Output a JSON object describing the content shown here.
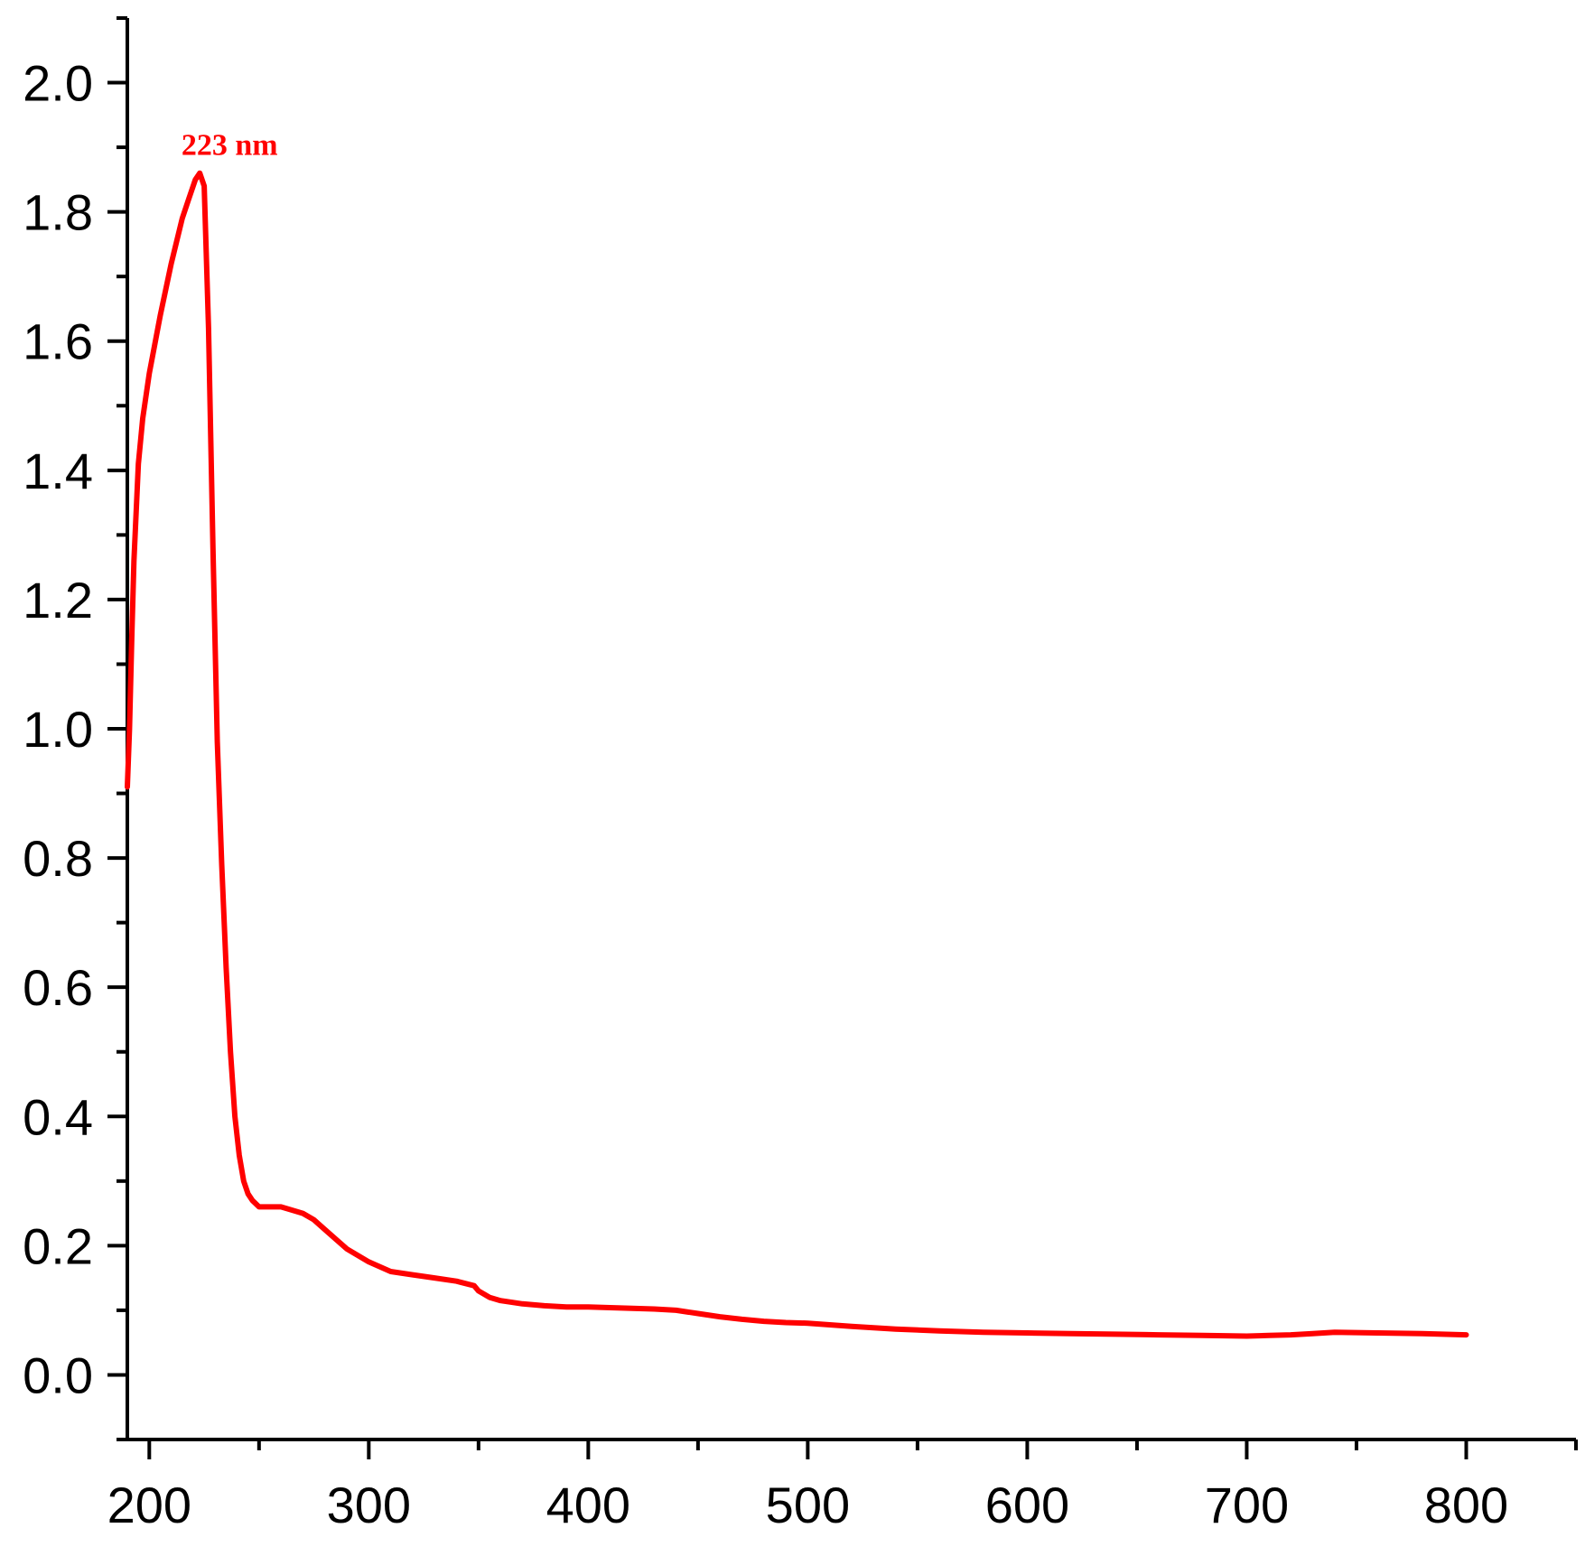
{
  "chart_data": {
    "type": "line",
    "title": "",
    "xlabel": "",
    "ylabel": "",
    "xlim": [
      190,
      850
    ],
    "ylim": [
      -0.1,
      2.1
    ],
    "x_ticks": [
      200,
      300,
      400,
      500,
      600,
      700,
      800
    ],
    "x_minor_ticks": [
      250,
      350,
      450,
      550,
      650,
      750,
      850
    ],
    "y_ticks": [
      0.0,
      0.2,
      0.4,
      0.6,
      0.8,
      1.0,
      1.2,
      1.4,
      1.6,
      1.8,
      2.0
    ],
    "y_minor_ticks": [
      -0.1,
      0.1,
      0.3,
      0.5,
      0.7,
      0.9,
      1.1,
      1.3,
      1.5,
      1.7,
      1.9,
      2.1
    ],
    "x_tick_labels": [
      "200",
      "300",
      "400",
      "500",
      "600",
      "700",
      "800"
    ],
    "y_tick_labels": [
      "0.0",
      "0.2",
      "0.4",
      "0.6",
      "0.8",
      "1.0",
      "1.2",
      "1.4",
      "1.6",
      "1.8",
      "2.0"
    ],
    "grid": false,
    "series": [
      {
        "color": "#ff0000",
        "x": [
          190,
          191,
          192,
          193,
          195,
          197,
          200,
          205,
          210,
          215,
          218,
          221,
          223,
          225,
          227,
          229,
          231,
          233,
          235,
          237,
          239,
          241,
          243,
          245,
          247,
          250,
          253,
          256,
          260,
          265,
          270,
          275,
          280,
          285,
          290,
          300,
          310,
          320,
          330,
          340,
          348,
          350,
          355,
          360,
          370,
          380,
          390,
          400,
          410,
          420,
          430,
          440,
          450,
          460,
          470,
          480,
          490,
          500,
          520,
          540,
          560,
          580,
          600,
          620,
          640,
          660,
          680,
          700,
          710,
          720,
          730,
          740,
          760,
          780,
          800
        ],
        "y": [
          0.91,
          1.0,
          1.14,
          1.26,
          1.41,
          1.48,
          1.55,
          1.64,
          1.72,
          1.79,
          1.82,
          1.85,
          1.86,
          1.84,
          1.62,
          1.28,
          0.98,
          0.79,
          0.63,
          0.5,
          0.4,
          0.34,
          0.3,
          0.28,
          0.27,
          0.26,
          0.26,
          0.26,
          0.26,
          0.255,
          0.25,
          0.24,
          0.225,
          0.21,
          0.195,
          0.175,
          0.16,
          0.155,
          0.15,
          0.145,
          0.138,
          0.13,
          0.12,
          0.115,
          0.11,
          0.107,
          0.105,
          0.105,
          0.104,
          0.103,
          0.102,
          0.1,
          0.095,
          0.09,
          0.086,
          0.083,
          0.081,
          0.08,
          0.075,
          0.071,
          0.068,
          0.066,
          0.065,
          0.064,
          0.063,
          0.062,
          0.061,
          0.06,
          0.061,
          0.062,
          0.064,
          0.066,
          0.065,
          0.064,
          0.062
        ]
      }
    ],
    "annotations": [
      {
        "text": "223 nm",
        "x": 223,
        "y": 1.86,
        "color": "#ff0000"
      }
    ]
  }
}
